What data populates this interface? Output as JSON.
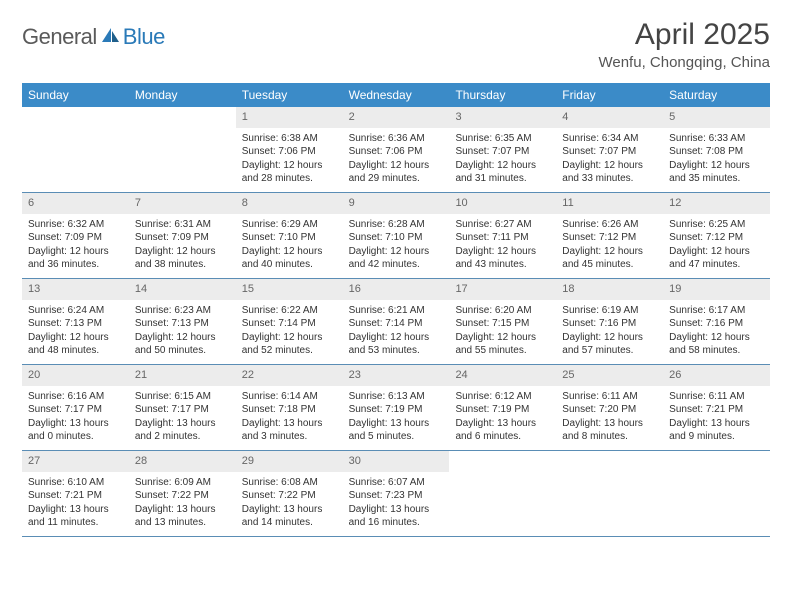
{
  "brand": {
    "name_a": "General",
    "name_b": "Blue"
  },
  "title": "April 2025",
  "location": "Wenfu, Chongqing, China",
  "colors": {
    "header_bg": "#3b8bc8",
    "header_text": "#ffffff",
    "daynum_bg": "#ececec",
    "daynum_text": "#666666",
    "body_text": "#333333",
    "rule": "#5a8db5",
    "logo_gray": "#5a5a5a",
    "logo_blue": "#2a7ab8"
  },
  "day_names": [
    "Sunday",
    "Monday",
    "Tuesday",
    "Wednesday",
    "Thursday",
    "Friday",
    "Saturday"
  ],
  "weeks": [
    [
      null,
      null,
      {
        "n": "1",
        "sr": "6:38 AM",
        "ss": "7:06 PM",
        "dl": "12 hours and 28 minutes."
      },
      {
        "n": "2",
        "sr": "6:36 AM",
        "ss": "7:06 PM",
        "dl": "12 hours and 29 minutes."
      },
      {
        "n": "3",
        "sr": "6:35 AM",
        "ss": "7:07 PM",
        "dl": "12 hours and 31 minutes."
      },
      {
        "n": "4",
        "sr": "6:34 AM",
        "ss": "7:07 PM",
        "dl": "12 hours and 33 minutes."
      },
      {
        "n": "5",
        "sr": "6:33 AM",
        "ss": "7:08 PM",
        "dl": "12 hours and 35 minutes."
      }
    ],
    [
      {
        "n": "6",
        "sr": "6:32 AM",
        "ss": "7:09 PM",
        "dl": "12 hours and 36 minutes."
      },
      {
        "n": "7",
        "sr": "6:31 AM",
        "ss": "7:09 PM",
        "dl": "12 hours and 38 minutes."
      },
      {
        "n": "8",
        "sr": "6:29 AM",
        "ss": "7:10 PM",
        "dl": "12 hours and 40 minutes."
      },
      {
        "n": "9",
        "sr": "6:28 AM",
        "ss": "7:10 PM",
        "dl": "12 hours and 42 minutes."
      },
      {
        "n": "10",
        "sr": "6:27 AM",
        "ss": "7:11 PM",
        "dl": "12 hours and 43 minutes."
      },
      {
        "n": "11",
        "sr": "6:26 AM",
        "ss": "7:12 PM",
        "dl": "12 hours and 45 minutes."
      },
      {
        "n": "12",
        "sr": "6:25 AM",
        "ss": "7:12 PM",
        "dl": "12 hours and 47 minutes."
      }
    ],
    [
      {
        "n": "13",
        "sr": "6:24 AM",
        "ss": "7:13 PM",
        "dl": "12 hours and 48 minutes."
      },
      {
        "n": "14",
        "sr": "6:23 AM",
        "ss": "7:13 PM",
        "dl": "12 hours and 50 minutes."
      },
      {
        "n": "15",
        "sr": "6:22 AM",
        "ss": "7:14 PM",
        "dl": "12 hours and 52 minutes."
      },
      {
        "n": "16",
        "sr": "6:21 AM",
        "ss": "7:14 PM",
        "dl": "12 hours and 53 minutes."
      },
      {
        "n": "17",
        "sr": "6:20 AM",
        "ss": "7:15 PM",
        "dl": "12 hours and 55 minutes."
      },
      {
        "n": "18",
        "sr": "6:19 AM",
        "ss": "7:16 PM",
        "dl": "12 hours and 57 minutes."
      },
      {
        "n": "19",
        "sr": "6:17 AM",
        "ss": "7:16 PM",
        "dl": "12 hours and 58 minutes."
      }
    ],
    [
      {
        "n": "20",
        "sr": "6:16 AM",
        "ss": "7:17 PM",
        "dl": "13 hours and 0 minutes."
      },
      {
        "n": "21",
        "sr": "6:15 AM",
        "ss": "7:17 PM",
        "dl": "13 hours and 2 minutes."
      },
      {
        "n": "22",
        "sr": "6:14 AM",
        "ss": "7:18 PM",
        "dl": "13 hours and 3 minutes."
      },
      {
        "n": "23",
        "sr": "6:13 AM",
        "ss": "7:19 PM",
        "dl": "13 hours and 5 minutes."
      },
      {
        "n": "24",
        "sr": "6:12 AM",
        "ss": "7:19 PM",
        "dl": "13 hours and 6 minutes."
      },
      {
        "n": "25",
        "sr": "6:11 AM",
        "ss": "7:20 PM",
        "dl": "13 hours and 8 minutes."
      },
      {
        "n": "26",
        "sr": "6:11 AM",
        "ss": "7:21 PM",
        "dl": "13 hours and 9 minutes."
      }
    ],
    [
      {
        "n": "27",
        "sr": "6:10 AM",
        "ss": "7:21 PM",
        "dl": "13 hours and 11 minutes."
      },
      {
        "n": "28",
        "sr": "6:09 AM",
        "ss": "7:22 PM",
        "dl": "13 hours and 13 minutes."
      },
      {
        "n": "29",
        "sr": "6:08 AM",
        "ss": "7:22 PM",
        "dl": "13 hours and 14 minutes."
      },
      {
        "n": "30",
        "sr": "6:07 AM",
        "ss": "7:23 PM",
        "dl": "13 hours and 16 minutes."
      },
      null,
      null,
      null
    ]
  ],
  "labels": {
    "sunrise": "Sunrise:",
    "sunset": "Sunset:",
    "daylight": "Daylight:"
  }
}
